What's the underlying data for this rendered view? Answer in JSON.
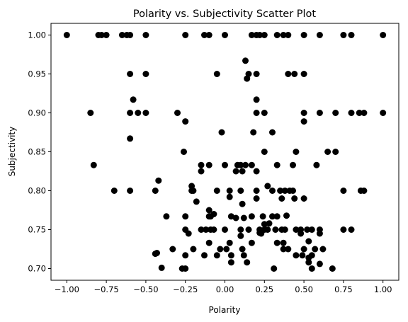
{
  "chart_data": {
    "type": "scatter",
    "title": "Polarity vs. Subjectivity Scatter Plot",
    "xlabel": "Polarity",
    "ylabel": "Subjectivity",
    "xlim": [
      -1.1,
      1.1
    ],
    "ylim": [
      0.685,
      1.015
    ],
    "grid": false,
    "xticks": [
      -1.0,
      -0.75,
      -0.5,
      -0.25,
      0.0,
      0.25,
      0.5,
      0.75,
      1.0
    ],
    "xtick_labels": [
      "−1.00",
      "−0.75",
      "−0.50",
      "−0.25",
      "0.00",
      "0.25",
      "0.50",
      "0.75",
      "1.00"
    ],
    "yticks": [
      0.7,
      0.75,
      0.8,
      0.85,
      0.9,
      0.95,
      1.0
    ],
    "ytick_labels": [
      "0.70",
      "0.75",
      "0.80",
      "0.85",
      "0.90",
      "0.95",
      "1.00"
    ],
    "marker_color": "#000000",
    "points": [
      [
        -1.0,
        1.0
      ],
      [
        -0.8,
        1.0
      ],
      [
        -0.78,
        1.0
      ],
      [
        -0.75,
        1.0
      ],
      [
        -0.65,
        1.0
      ],
      [
        -0.62,
        1.0
      ],
      [
        -0.6,
        1.0
      ],
      [
        -0.5,
        1.0
      ],
      [
        -0.25,
        1.0
      ],
      [
        -0.13,
        1.0
      ],
      [
        -0.1,
        1.0
      ],
      [
        0.0,
        1.0
      ],
      [
        0.17,
        1.0
      ],
      [
        0.2,
        1.0
      ],
      [
        0.22,
        1.0
      ],
      [
        0.25,
        1.0
      ],
      [
        0.33,
        1.0
      ],
      [
        0.37,
        1.0
      ],
      [
        0.4,
        1.0
      ],
      [
        0.5,
        1.0
      ],
      [
        0.6,
        1.0
      ],
      [
        0.75,
        1.0
      ],
      [
        0.8,
        1.0
      ],
      [
        1.0,
        1.0
      ],
      [
        0.13,
        0.967
      ],
      [
        -0.6,
        0.95
      ],
      [
        -0.5,
        0.95
      ],
      [
        -0.05,
        0.95
      ],
      [
        0.15,
        0.95
      ],
      [
        0.2,
        0.95
      ],
      [
        0.4,
        0.95
      ],
      [
        0.44,
        0.95
      ],
      [
        0.5,
        0.95
      ],
      [
        0.14,
        0.944
      ],
      [
        -0.58,
        0.917
      ],
      [
        0.2,
        0.917
      ],
      [
        -0.85,
        0.9
      ],
      [
        -0.6,
        0.9
      ],
      [
        -0.55,
        0.9
      ],
      [
        -0.5,
        0.9
      ],
      [
        -0.3,
        0.9
      ],
      [
        0.2,
        0.9
      ],
      [
        0.25,
        0.9
      ],
      [
        0.5,
        0.9
      ],
      [
        0.6,
        0.9
      ],
      [
        0.7,
        0.9
      ],
      [
        0.8,
        0.9
      ],
      [
        0.85,
        0.9
      ],
      [
        0.88,
        0.9
      ],
      [
        1.0,
        0.9
      ],
      [
        -0.25,
        0.889
      ],
      [
        0.5,
        0.889
      ],
      [
        -0.02,
        0.875
      ],
      [
        0.18,
        0.875
      ],
      [
        0.3,
        0.875
      ],
      [
        -0.6,
        0.867
      ],
      [
        -0.26,
        0.85
      ],
      [
        0.25,
        0.85
      ],
      [
        0.45,
        0.85
      ],
      [
        0.65,
        0.85
      ],
      [
        0.7,
        0.85
      ],
      [
        -0.83,
        0.833
      ],
      [
        -0.15,
        0.833
      ],
      [
        -0.1,
        0.833
      ],
      [
        0.0,
        0.833
      ],
      [
        0.08,
        0.833
      ],
      [
        0.1,
        0.833
      ],
      [
        0.13,
        0.833
      ],
      [
        0.17,
        0.833
      ],
      [
        0.33,
        0.833
      ],
      [
        0.43,
        0.833
      ],
      [
        0.58,
        0.833
      ],
      [
        0.07,
        0.825
      ],
      [
        0.11,
        0.825
      ],
      [
        0.2,
        0.825
      ],
      [
        -0.15,
        0.825
      ],
      [
        -0.42,
        0.813
      ],
      [
        -0.7,
        0.8
      ],
      [
        -0.6,
        0.8
      ],
      [
        -0.44,
        0.8
      ],
      [
        -0.2,
        0.8
      ],
      [
        -0.05,
        0.8
      ],
      [
        0.03,
        0.8
      ],
      [
        0.1,
        0.8
      ],
      [
        0.2,
        0.8
      ],
      [
        0.3,
        0.8
      ],
      [
        0.35,
        0.8
      ],
      [
        0.38,
        0.8
      ],
      [
        0.41,
        0.8
      ],
      [
        0.43,
        0.8
      ],
      [
        0.75,
        0.8
      ],
      [
        0.86,
        0.8
      ],
      [
        0.88,
        0.8
      ],
      [
        -0.21,
        0.806
      ],
      [
        0.27,
        0.806
      ],
      [
        -0.21,
        0.8
      ],
      [
        -0.18,
        0.786
      ],
      [
        0.11,
        0.783
      ],
      [
        0.03,
        0.792
      ],
      [
        0.36,
        0.79
      ],
      [
        0.44,
        0.79
      ],
      [
        0.5,
        0.79
      ],
      [
        0.2,
        0.79
      ],
      [
        -0.1,
        0.775
      ],
      [
        -0.1,
        0.767
      ],
      [
        -0.09,
        0.767
      ],
      [
        -0.07,
        0.77
      ],
      [
        0.04,
        0.767
      ],
      [
        0.07,
        0.765
      ],
      [
        0.12,
        0.765
      ],
      [
        0.17,
        0.767
      ],
      [
        0.24,
        0.767
      ],
      [
        0.3,
        0.767
      ],
      [
        0.33,
        0.767
      ],
      [
        0.39,
        0.768
      ],
      [
        -0.37,
        0.767
      ],
      [
        -0.25,
        0.767
      ],
      [
        0.28,
        0.758
      ],
      [
        0.25,
        0.75
      ],
      [
        0.25,
        0.757
      ],
      [
        -0.25,
        0.75
      ],
      [
        -0.15,
        0.75
      ],
      [
        -0.12,
        0.75
      ],
      [
        -0.09,
        0.75
      ],
      [
        -0.07,
        0.75
      ],
      [
        0.0,
        0.75
      ],
      [
        0.1,
        0.75
      ],
      [
        0.15,
        0.75
      ],
      [
        0.22,
        0.75
      ],
      [
        0.27,
        0.75
      ],
      [
        0.32,
        0.75
      ],
      [
        0.36,
        0.75
      ],
      [
        0.38,
        0.75
      ],
      [
        0.45,
        0.75
      ],
      [
        0.48,
        0.75
      ],
      [
        0.52,
        0.75
      ],
      [
        0.55,
        0.75
      ],
      [
        0.6,
        0.75
      ],
      [
        0.75,
        0.75
      ],
      [
        0.8,
        0.75
      ],
      [
        0.22,
        0.746
      ],
      [
        0.23,
        0.745
      ],
      [
        0.6,
        0.745
      ],
      [
        0.48,
        0.745
      ],
      [
        -0.23,
        0.745
      ],
      [
        0.1,
        0.742
      ],
      [
        -0.1,
        0.733
      ],
      [
        0.03,
        0.733
      ],
      [
        0.17,
        0.733
      ],
      [
        0.33,
        0.733
      ],
      [
        0.37,
        0.733
      ],
      [
        0.53,
        0.735
      ],
      [
        -0.33,
        0.725
      ],
      [
        -0.2,
        0.725
      ],
      [
        -0.03,
        0.725
      ],
      [
        0.01,
        0.725
      ],
      [
        0.11,
        0.725
      ],
      [
        0.37,
        0.725
      ],
      [
        0.4,
        0.725
      ],
      [
        0.5,
        0.725
      ],
      [
        0.57,
        0.725
      ],
      [
        0.62,
        0.725
      ],
      [
        -0.44,
        0.719
      ],
      [
        -0.43,
        0.72
      ],
      [
        -0.25,
        0.717
      ],
      [
        -0.13,
        0.717
      ],
      [
        -0.05,
        0.717
      ],
      [
        0.04,
        0.717
      ],
      [
        0.12,
        0.717
      ],
      [
        0.45,
        0.717
      ],
      [
        0.49,
        0.717
      ],
      [
        0.55,
        0.717
      ],
      [
        0.53,
        0.714
      ],
      [
        0.53,
        0.708
      ],
      [
        0.04,
        0.708
      ],
      [
        0.14,
        0.708
      ],
      [
        0.6,
        0.706
      ],
      [
        -0.4,
        0.701
      ],
      [
        -0.27,
        0.7
      ],
      [
        -0.25,
        0.7
      ],
      [
        0.31,
        0.7
      ],
      [
        0.55,
        0.7
      ],
      [
        0.68,
        0.7
      ]
    ]
  }
}
